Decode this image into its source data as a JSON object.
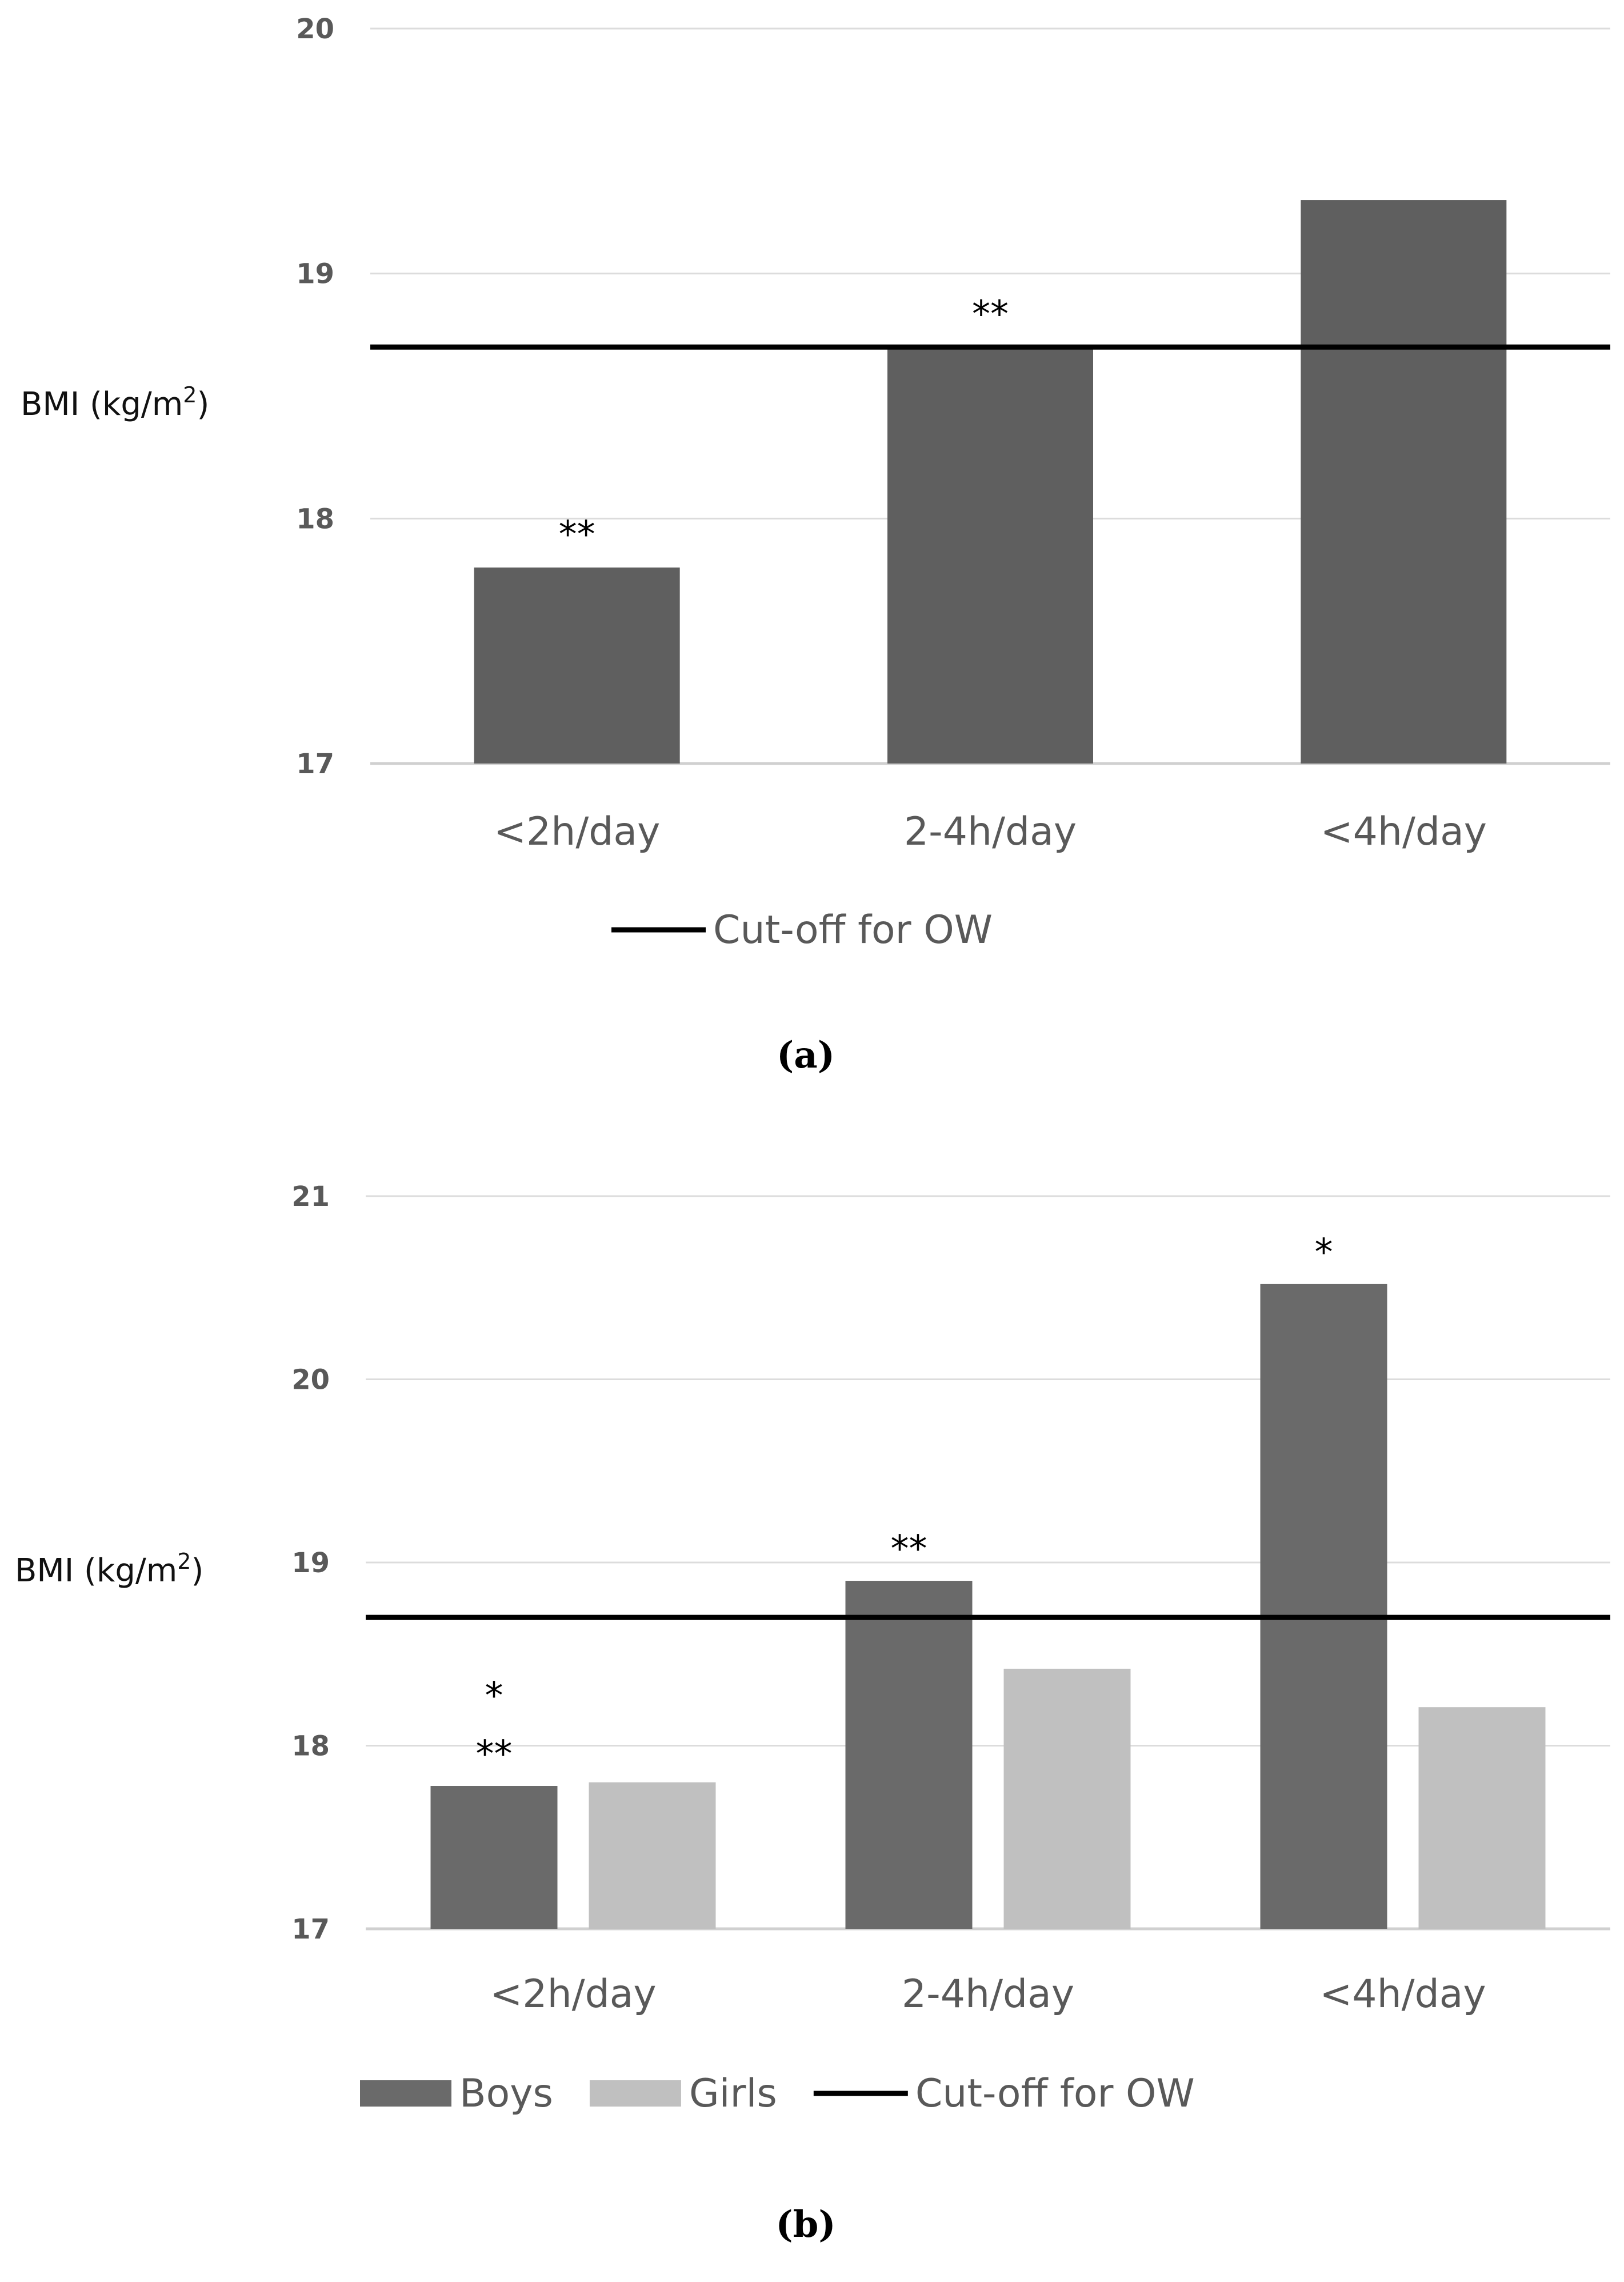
{
  "chart_data": [
    {
      "type": "bar",
      "panel_label": "(a)",
      "ylabel": {
        "main": "BMI (kg/m",
        "sup": "2",
        "close": ")"
      },
      "ylim": [
        17,
        20
      ],
      "yticks": [
        17,
        18,
        19,
        20
      ],
      "grid": true,
      "categories": [
        "<2h/day",
        "2-4h/day",
        "<4h/day"
      ],
      "series": [
        {
          "name": "BMI",
          "color": "#5f5f5f",
          "values": [
            17.8,
            18.7,
            19.3
          ]
        }
      ],
      "reference_line": {
        "name": "Cut-off for OW",
        "value": 18.7,
        "color": "#000000"
      },
      "annotations": [
        {
          "category": 0,
          "series": 0,
          "lines": [
            "**"
          ]
        },
        {
          "category": 1,
          "series": 0,
          "lines": [
            "**"
          ]
        }
      ],
      "legend": {
        "position": "bottom",
        "items": [
          {
            "type": "line",
            "label": "Cut-off for OW",
            "color": "#000000"
          }
        ]
      }
    },
    {
      "type": "bar",
      "panel_label": "(b)",
      "ylabel": {
        "main": "BMI (kg/m",
        "sup": "2",
        "close": ")"
      },
      "ylim": [
        17,
        21
      ],
      "yticks": [
        17,
        18,
        19,
        20,
        21
      ],
      "grid": true,
      "categories": [
        "<2h/day",
        "2-4h/day",
        "<4h/day"
      ],
      "series": [
        {
          "name": "Boys",
          "color": "#6a6a6a",
          "values": [
            17.78,
            18.9,
            20.52
          ]
        },
        {
          "name": "Girls",
          "color": "#c0c0c0",
          "values": [
            17.8,
            18.42,
            18.21
          ]
        }
      ],
      "reference_line": {
        "name": "Cut-off for OW",
        "value": 18.7,
        "color": "#000000"
      },
      "annotations": [
        {
          "category": 0,
          "series": 0,
          "lines": [
            "*",
            "**"
          ]
        },
        {
          "category": 1,
          "series": 0,
          "lines": [
            "**"
          ]
        },
        {
          "category": 2,
          "series": 0,
          "lines": [
            "*"
          ]
        }
      ],
      "legend": {
        "position": "bottom",
        "items": [
          {
            "type": "box",
            "label": "Boys",
            "color": "#6a6a6a"
          },
          {
            "type": "box",
            "label": "Girls",
            "color": "#c0c0c0"
          },
          {
            "type": "line",
            "label": "Cut-off for OW",
            "color": "#000000"
          }
        ]
      }
    }
  ]
}
